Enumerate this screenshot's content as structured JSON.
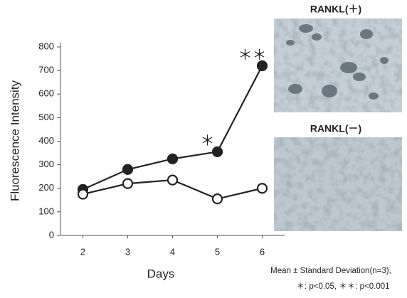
{
  "chart_data": {
    "type": "line",
    "x_label": "Days",
    "y_label": "Fluorescence Intensity",
    "x": [
      2,
      3,
      4,
      5,
      6
    ],
    "xlim": [
      1.5,
      6.5
    ],
    "xticks": [
      2,
      3,
      4,
      5,
      6
    ],
    "ylim": [
      0,
      800
    ],
    "yticks": [
      0,
      100,
      200,
      300,
      400,
      500,
      600,
      700,
      800
    ],
    "series": [
      {
        "color": "#222222",
        "marker_fill": "#222222",
        "values": [
          195,
          280,
          325,
          355,
          720
        ]
      },
      {
        "color": "#222222",
        "marker_fill": "#ffffff",
        "values": [
          175,
          220,
          235,
          155,
          200
        ]
      }
    ],
    "annotations": [
      {
        "text": "＊",
        "x": 5
      },
      {
        "text": "＊＊",
        "x": 6
      }
    ]
  },
  "images": [
    {
      "label": "RANKL(＋)"
    },
    {
      "label": "RANKL(－)"
    }
  ],
  "footnote": [
    "Mean ± Standard Deviation(n=3),",
    "＊: p<0.05, ＊＊: p<0.001"
  ]
}
